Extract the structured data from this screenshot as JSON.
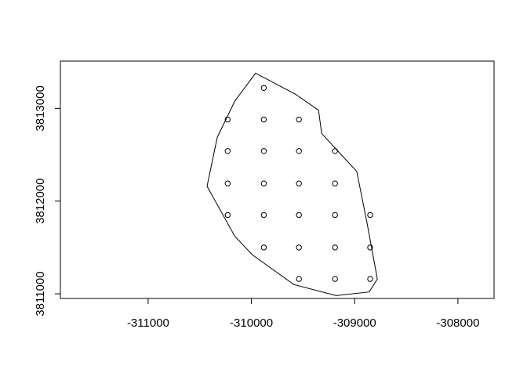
{
  "chart_data": {
    "type": "scatter",
    "title": "",
    "xlabel": "",
    "ylabel": "",
    "xlim": [
      -311850,
      -307650
    ],
    "ylim": [
      3810950,
      3813510
    ],
    "grid": false,
    "legend": "none",
    "x_ticks": [
      -311000,
      -310000,
      -309000,
      -308000
    ],
    "x_tick_labels": [
      "-311000",
      "-310000",
      "-309000",
      "-308000"
    ],
    "y_ticks": [
      3811000,
      3812000,
      3813000
    ],
    "y_tick_labels": [
      "3811000",
      "3812000",
      "3813000"
    ],
    "boundary_polygon": [
      [
        -309960,
        3813380
      ],
      [
        -309570,
        3813150
      ],
      [
        -309350,
        3812980
      ],
      [
        -309320,
        3812730
      ],
      [
        -309130,
        3812500
      ],
      [
        -308980,
        3812320
      ],
      [
        -308880,
        3811760
      ],
      [
        -308780,
        3811160
      ],
      [
        -308860,
        3811020
      ],
      [
        -309180,
        3810980
      ],
      [
        -309590,
        3811100
      ],
      [
        -309990,
        3811420
      ],
      [
        -310160,
        3811620
      ],
      [
        -310430,
        3812160
      ],
      [
        -310330,
        3812690
      ],
      [
        -310160,
        3813080
      ]
    ],
    "points": [
      [
        -309880,
        3813220
      ],
      [
        -310230,
        3812880
      ],
      [
        -309880,
        3812880
      ],
      [
        -309540,
        3812880
      ],
      [
        -310230,
        3812540
      ],
      [
        -309880,
        3812540
      ],
      [
        -309540,
        3812540
      ],
      [
        -309190,
        3812540
      ],
      [
        -310230,
        3812190
      ],
      [
        -309880,
        3812190
      ],
      [
        -309540,
        3812190
      ],
      [
        -309190,
        3812190
      ],
      [
        -310230,
        3811850
      ],
      [
        -309880,
        3811850
      ],
      [
        -309540,
        3811850
      ],
      [
        -309190,
        3811850
      ],
      [
        -308850,
        3811850
      ],
      [
        -309880,
        3811500
      ],
      [
        -309540,
        3811500
      ],
      [
        -309190,
        3811500
      ],
      [
        -308850,
        3811500
      ],
      [
        -309540,
        3811160
      ],
      [
        -309190,
        3811160
      ],
      [
        -308850,
        3811160
      ]
    ]
  }
}
